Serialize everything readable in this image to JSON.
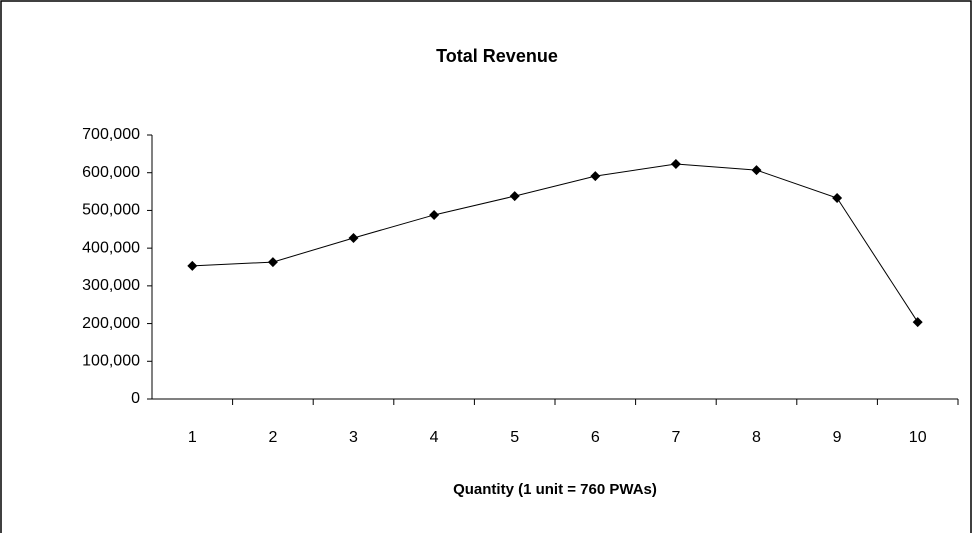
{
  "chart_data": {
    "type": "line",
    "title": "Total Revenue",
    "x_label": "Quantity (1 unit = 760 PWAs)",
    "categories": [
      "1",
      "2",
      "3",
      "4",
      "5",
      "6",
      "7",
      "8",
      "9",
      "10"
    ],
    "series": [
      {
        "name": "Total Revenue",
        "color": "#000000",
        "values": [
          353000,
          363000,
          427000,
          488000,
          538000,
          591000,
          623000,
          607000,
          533000,
          204000
        ]
      }
    ],
    "ylim": [
      0,
      700000
    ],
    "yticks": [
      0,
      {
        "value": 100000,
        "label": "100,000"
      },
      {
        "value": 200000,
        "label": "200,000"
      },
      {
        "value": 300000,
        "label": "300,000"
      },
      {
        "value": 400000,
        "label": "400,000"
      },
      {
        "value": 500000,
        "label": "500,000"
      },
      {
        "value": 600000,
        "label": "600,000"
      },
      {
        "value": 700000,
        "label": "700,000"
      }
    ],
    "grid": false,
    "legend": false
  }
}
